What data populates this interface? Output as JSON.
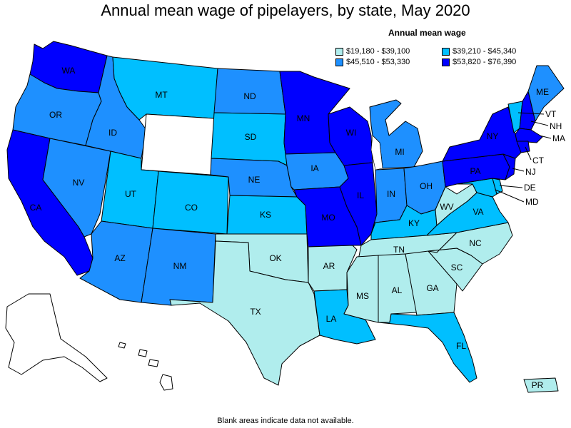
{
  "title": "Annual mean wage of pipelayers, by state, May 2020",
  "legend": {
    "title": "Annual mean wage",
    "items": [
      {
        "label": "$19,180 - $39,100",
        "color": "#b0eded"
      },
      {
        "label": "$39,210 - $45,340",
        "color": "#00bfff"
      },
      {
        "label": "$45,510 - $53,330",
        "color": "#1e90ff"
      },
      {
        "label": "$53,820 - $76,390",
        "color": "#0000ff"
      }
    ]
  },
  "footnote": "Blank areas indicate data not available.",
  "colors": {
    "na": "#ffffff",
    "c1": "#b0eded",
    "c2": "#00bfff",
    "c3": "#1e90ff",
    "c4": "#0000ff"
  },
  "states": {
    "WA": "c4",
    "OR": "c3",
    "CA": "c4",
    "NV": "c3",
    "ID": "c3",
    "MT": "c2",
    "WY": "na",
    "UT": "c2",
    "CO": "c2",
    "AZ": "c3",
    "NM": "c3",
    "ND": "c3",
    "SD": "c2",
    "NE": "c3",
    "KS": "c2",
    "OK": "c1",
    "TX": "c1",
    "MN": "c4",
    "IA": "c3",
    "MO": "c4",
    "AR": "c1",
    "LA": "c2",
    "WI": "c4",
    "IL": "c4",
    "MI": "c3",
    "IN": "c3",
    "OH": "c3",
    "KY": "c2",
    "TN": "c1",
    "MS": "c1",
    "AL": "c1",
    "GA": "c1",
    "FL": "c2",
    "SC": "c1",
    "NC": "c1",
    "VA": "c2",
    "WV": "c1",
    "PA": "c4",
    "NY": "c4",
    "ME": "c3",
    "VT": "c2",
    "NH": "c4",
    "MA": "c4",
    "CT": "c4",
    "NJ": "c4",
    "DE": "c2",
    "MD": "c2",
    "PR": "c1",
    "AK": "na",
    "HI": "na"
  },
  "labels": [
    "WA",
    "OR",
    "CA",
    "NV",
    "ID",
    "MT",
    "UT",
    "CO",
    "AZ",
    "NM",
    "ND",
    "SD",
    "NE",
    "KS",
    "OK",
    "TX",
    "MN",
    "IA",
    "MO",
    "AR",
    "LA",
    "WI",
    "IL",
    "MI",
    "IN",
    "OH",
    "KY",
    "TN",
    "MS",
    "AL",
    "GA",
    "FL",
    "SC",
    "NC",
    "VA",
    "WV",
    "PA",
    "NY",
    "ME",
    "VT",
    "NH",
    "MA",
    "CT",
    "NJ",
    "DE",
    "MD",
    "PR"
  ]
}
